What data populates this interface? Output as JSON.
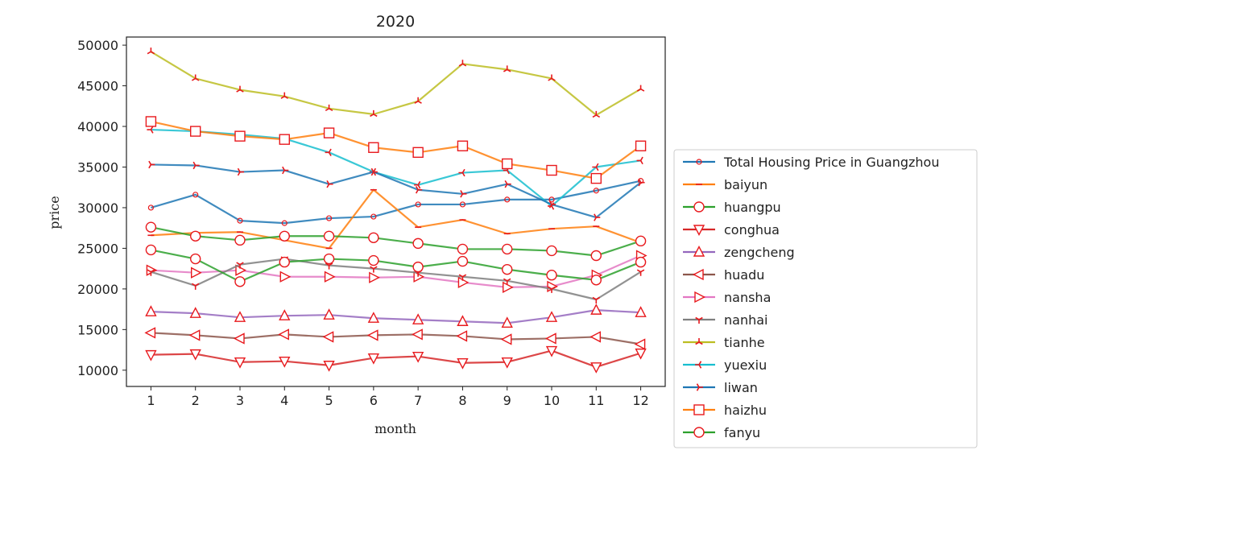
{
  "chart_data": {
    "type": "line",
    "title": "2020",
    "xlabel": "month",
    "ylabel": "price",
    "categories": [
      "1",
      "2",
      "3",
      "4",
      "5",
      "6",
      "7",
      "8",
      "9",
      "10",
      "11",
      "12"
    ],
    "xlim": [
      0.45,
      12.55
    ],
    "ylim": [
      8000,
      51000
    ],
    "yticks": [
      10000,
      15000,
      20000,
      25000,
      30000,
      35000,
      40000,
      45000,
      50000
    ],
    "grid": false,
    "legend_position": "right",
    "marker_edge_color": "#e8191d",
    "series": [
      {
        "name": "Total Housing Price in Guangzhou",
        "color": "#1f77b4",
        "marker": "circle-small",
        "values": [
          30000,
          31600,
          28400,
          28100,
          28700,
          28900,
          30400,
          30400,
          31000,
          31000,
          32100,
          33300
        ]
      },
      {
        "name": "baiyun",
        "color": "#ff7f0e",
        "marker": "hline",
        "values": [
          26600,
          26900,
          27000,
          26000,
          25000,
          32200,
          27600,
          28500,
          26800,
          27400,
          27700,
          25700
        ]
      },
      {
        "name": "huangpu",
        "color": "#2ca02c",
        "marker": "circle",
        "values": [
          27600,
          26500,
          26000,
          26500,
          26500,
          26300,
          25600,
          24900,
          24900,
          24700,
          24100,
          25900
        ]
      },
      {
        "name": "conghua",
        "color": "#d62728",
        "marker": "triangle-down",
        "values": [
          11900,
          12000,
          11000,
          11100,
          10600,
          11500,
          11700,
          10900,
          11000,
          12400,
          10400,
          12100
        ]
      },
      {
        "name": "zengcheng",
        "color": "#9467bd",
        "marker": "triangle-up",
        "values": [
          17200,
          17000,
          16500,
          16700,
          16800,
          16400,
          16200,
          16000,
          15800,
          16500,
          17400,
          17100
        ]
      },
      {
        "name": "huadu",
        "color": "#8c564b",
        "marker": "triangle-left",
        "values": [
          14600,
          14300,
          13900,
          14400,
          14100,
          14300,
          14400,
          14200,
          13800,
          13900,
          14100,
          13200
        ]
      },
      {
        "name": "nansha",
        "color": "#e377c2",
        "marker": "triangle-right",
        "values": [
          22300,
          22000,
          22300,
          21500,
          21500,
          21400,
          21500,
          20800,
          20200,
          20300,
          21700,
          24100
        ]
      },
      {
        "name": "nanhai",
        "color": "#7f7f7f",
        "marker": "tri-down",
        "values": [
          22100,
          20400,
          23000,
          23700,
          22900,
          22500,
          22000,
          21500,
          21000,
          20000,
          18700,
          22100
        ]
      },
      {
        "name": "tianhe",
        "color": "#bcbd22",
        "marker": "tri-up",
        "values": [
          49200,
          45900,
          44500,
          43700,
          42200,
          41500,
          43100,
          47700,
          47000,
          45900,
          41400,
          44600
        ]
      },
      {
        "name": "yuexiu",
        "color": "#17becf",
        "marker": "tri-left",
        "values": [
          39600,
          39400,
          39000,
          38500,
          36800,
          34400,
          32800,
          34300,
          34600,
          30200,
          35000,
          35800
        ]
      },
      {
        "name": "liwan",
        "color": "#1f77b4",
        "marker": "tri-right",
        "values": [
          35300,
          35200,
          34400,
          34600,
          32900,
          34400,
          32200,
          31700,
          32900,
          30400,
          28800,
          33100
        ]
      },
      {
        "name": "haizhu",
        "color": "#ff7f0e",
        "marker": "square",
        "values": [
          40600,
          39400,
          38800,
          38400,
          39200,
          37400,
          36800,
          37600,
          35400,
          34600,
          33600,
          37600
        ]
      },
      {
        "name": "fanyu",
        "color": "#2ca02c",
        "marker": "circle",
        "values": [
          24800,
          23700,
          20900,
          23300,
          23700,
          23500,
          22700,
          23400,
          22400,
          21700,
          21100,
          23300
        ]
      }
    ]
  }
}
